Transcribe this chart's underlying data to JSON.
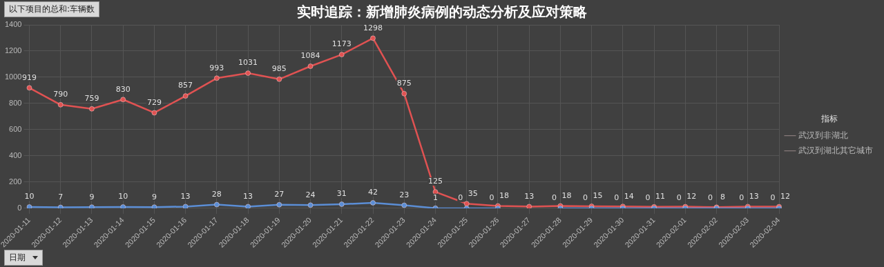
{
  "chart_data": {
    "type": "line",
    "title": "实时追踪：新增肺炎病例的动态分析及应对策略",
    "annotations": [
      "以下项目的总和:车辆数"
    ],
    "xlabel": "日期",
    "legend_title": "指标",
    "categories": [
      "2020-01-11",
      "2020-01-12",
      "2020-01-13",
      "2020-01-14",
      "2020-01-15",
      "2020-01-16",
      "2020-01-17",
      "2020-01-18",
      "2020-01-19",
      "2020-01-20",
      "2020-01-21",
      "2020-01-22",
      "2020-01-23",
      "2020-01-24",
      "2020-01-25",
      "2020-01-26",
      "2020-01-27",
      "2020-01-28",
      "2020-01-29",
      "2020-01-30",
      "2020-01-31",
      "2020-02-01",
      "2020-02-02",
      "2020-02-03",
      "2020-02-04"
    ],
    "series": [
      {
        "name": "武汉到非湖北",
        "color": "#5b8ed6",
        "values": [
          10,
          7,
          9,
          10,
          9,
          13,
          28,
          13,
          27,
          24,
          31,
          42,
          23,
          1,
          0,
          0,
          null,
          0,
          0,
          0,
          0,
          0,
          0,
          0,
          0
        ]
      },
      {
        "name": "武汉到湖北其它城市",
        "color": "#e05252",
        "values": [
          919,
          790,
          759,
          830,
          729,
          857,
          993,
          1031,
          985,
          1084,
          1173,
          1298,
          875,
          125,
          35,
          18,
          13,
          18,
          15,
          14,
          11,
          12,
          8,
          13,
          12
        ]
      }
    ],
    "ylim": [
      0,
      1400
    ],
    "yticks": [
      0,
      200,
      400,
      600,
      800,
      1000,
      1200,
      1400
    ],
    "grid": true,
    "legend": "right",
    "marker": "circle",
    "line_style": "solid",
    "data_labels": true
  }
}
